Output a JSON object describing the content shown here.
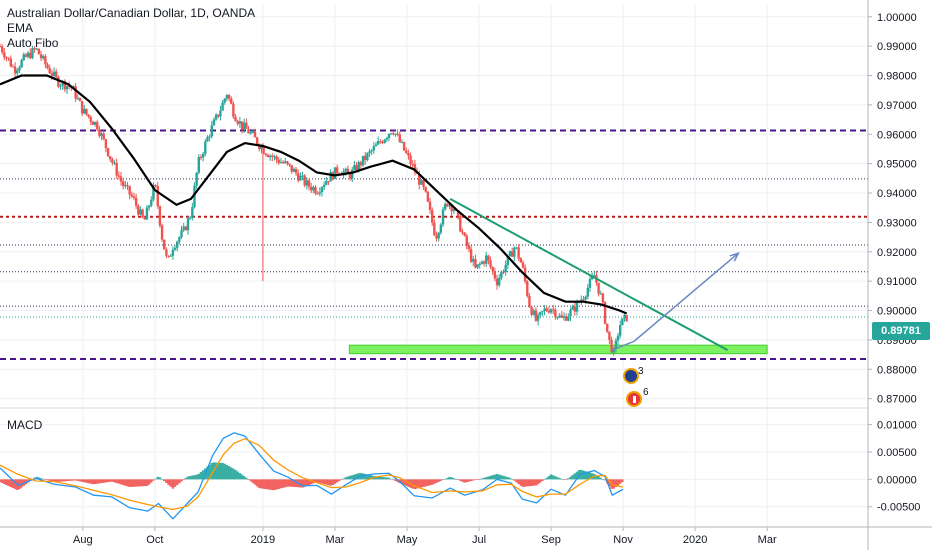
{
  "legend": {
    "title": "Australian Dollar/Canadian Dollar, 1D, OANDA",
    "indicator_1": "EMA",
    "indicator_2": "Auto Fibo"
  },
  "macd_label": "MACD",
  "last_price_tag": "0.89781",
  "events": [
    {
      "icon": "aud-flag-icon",
      "count": "3"
    },
    {
      "icon": "cad-flag-icon",
      "count": "6"
    }
  ],
  "colors": {
    "up": "#26a69a",
    "down": "#ef5350",
    "ema": "#000000",
    "fibo_major": "#4a148c",
    "fibo_red": "#b71c1c",
    "fibo_minor": "#2c2c54",
    "trendline": "#1b9e6e",
    "support_zone": "#66ee44",
    "projection": "#6b86c2",
    "macd": "#2196f3",
    "signal": "#ff9800"
  },
  "chart_data": [
    {
      "type": "candlestick",
      "title": "Australian Dollar/Canadian Dollar, 1D, OANDA",
      "price_axis": {
        "ticks": [
          "1.00000",
          "0.99000",
          "0.98000",
          "0.97000",
          "0.96000",
          "0.95000",
          "0.94000",
          "0.93000",
          "0.92000",
          "0.91000",
          "0.90000",
          "0.89000",
          "0.88000",
          "0.87000"
        ],
        "range": [
          0.8675,
          1.004
        ]
      },
      "time_axis": {
        "ticks": [
          "Aug",
          "Oct",
          "2019",
          "Mar",
          "May",
          "Jul",
          "Sep",
          "Nov",
          "2020",
          "Mar"
        ],
        "tick_months": [
          1.0,
          3.0,
          6.0,
          8.0,
          10.0,
          12.0,
          14.0,
          16.0,
          18.0,
          20.0
        ],
        "range_months": [
          -1.3,
          22.8
        ]
      },
      "price_path": [
        [
          -1.3,
          0.99
        ],
        [
          -0.9,
          0.982
        ],
        [
          -0.6,
          0.986
        ],
        [
          -0.3,
          0.989
        ],
        [
          0.0,
          0.983
        ],
        [
          0.3,
          0.978
        ],
        [
          0.7,
          0.976
        ],
        [
          1.0,
          0.968
        ],
        [
          1.4,
          0.963
        ],
        [
          1.8,
          0.951
        ],
        [
          2.1,
          0.943
        ],
        [
          2.4,
          0.938
        ],
        [
          2.7,
          0.93
        ],
        [
          3.0,
          0.943
        ],
        [
          3.2,
          0.925
        ],
        [
          3.35,
          0.916
        ],
        [
          3.5,
          0.922
        ],
        [
          3.8,
          0.927
        ],
        [
          4.0,
          0.933
        ],
        [
          4.2,
          0.95
        ],
        [
          4.5,
          0.96
        ],
        [
          4.8,
          0.968
        ],
        [
          5.0,
          0.974
        ],
        [
          5.2,
          0.967
        ],
        [
          5.4,
          0.963
        ],
        [
          5.6,
          0.961
        ],
        [
          5.8,
          0.958
        ],
        [
          6.0,
          0.955
        ],
        [
          6.3,
          0.952
        ],
        [
          6.6,
          0.95
        ],
        [
          6.9,
          0.947
        ],
        [
          7.2,
          0.943
        ],
        [
          7.5,
          0.941
        ],
        [
          7.8,
          0.945
        ],
        [
          8.1,
          0.948
        ],
        [
          8.4,
          0.946
        ],
        [
          8.7,
          0.95
        ],
        [
          9.0,
          0.954
        ],
        [
          9.3,
          0.958
        ],
        [
          9.6,
          0.962
        ],
        [
          9.9,
          0.955
        ],
        [
          10.2,
          0.948
        ],
        [
          10.5,
          0.94
        ],
        [
          10.8,
          0.925
        ],
        [
          11.1,
          0.937
        ],
        [
          11.3,
          0.935
        ],
        [
          11.6,
          0.924
        ],
        [
          11.9,
          0.914
        ],
        [
          12.2,
          0.918
        ],
        [
          12.5,
          0.91
        ],
        [
          12.8,
          0.917
        ],
        [
          13.0,
          0.922
        ],
        [
          13.2,
          0.915
        ],
        [
          13.4,
          0.902
        ],
        [
          13.6,
          0.896
        ],
        [
          13.8,
          0.9
        ],
        [
          14.0,
          0.901
        ],
        [
          14.3,
          0.897
        ],
        [
          14.6,
          0.9
        ],
        [
          14.9,
          0.905
        ],
        [
          15.2,
          0.912
        ],
        [
          15.4,
          0.904
        ],
        [
          15.6,
          0.89
        ],
        [
          15.75,
          0.885
        ],
        [
          15.9,
          0.895
        ],
        [
          16.1,
          0.8978
        ]
      ],
      "ema_path": [
        [
          -1.3,
          0.977
        ],
        [
          -0.7,
          0.98
        ],
        [
          0.0,
          0.98
        ],
        [
          0.6,
          0.977
        ],
        [
          1.2,
          0.971
        ],
        [
          1.8,
          0.962
        ],
        [
          2.4,
          0.952
        ],
        [
          3.0,
          0.941
        ],
        [
          3.6,
          0.936
        ],
        [
          4.0,
          0.938
        ],
        [
          4.5,
          0.946
        ],
        [
          5.0,
          0.954
        ],
        [
          5.5,
          0.957
        ],
        [
          6.0,
          0.956
        ],
        [
          6.5,
          0.954
        ],
        [
          7.0,
          0.951
        ],
        [
          7.5,
          0.947
        ],
        [
          8.0,
          0.946
        ],
        [
          8.5,
          0.947
        ],
        [
          9.0,
          0.949
        ],
        [
          9.6,
          0.951
        ],
        [
          10.2,
          0.948
        ],
        [
          10.8,
          0.941
        ],
        [
          11.4,
          0.934
        ],
        [
          12.0,
          0.928
        ],
        [
          12.6,
          0.921
        ],
        [
          13.2,
          0.913
        ],
        [
          13.8,
          0.906
        ],
        [
          14.4,
          0.903
        ],
        [
          14.9,
          0.903
        ],
        [
          15.4,
          0.902
        ],
        [
          15.9,
          0.9
        ],
        [
          16.1,
          0.899
        ]
      ],
      "fibo_levels": [
        {
          "price": 0.9613,
          "style": "major"
        },
        {
          "price": 0.9448,
          "style": "minor"
        },
        {
          "price": 0.9319,
          "style": "red"
        },
        {
          "price": 0.9223,
          "style": "minor"
        },
        {
          "price": 0.9132,
          "style": "minor"
        },
        {
          "price": 0.9015,
          "style": "minor"
        },
        {
          "price": 0.8978,
          "style": "minor"
        },
        {
          "price": 0.8835,
          "style": "major"
        }
      ],
      "trendline": [
        [
          11.2,
          0.938
        ],
        [
          18.9,
          0.8865
        ]
      ],
      "support_zone": {
        "x": [
          8.4,
          20.0
        ],
        "price": [
          0.8853,
          0.8882
        ]
      },
      "projection": [
        [
          15.7,
          0.8866
        ],
        [
          16.3,
          0.8895
        ],
        [
          19.2,
          0.9195
        ]
      ],
      "last_price": 0.8978
    },
    {
      "type": "line",
      "title": "MACD",
      "value_axis": {
        "ticks": [
          "0.01000",
          "0.00500",
          "0.00000",
          "-0.00500"
        ],
        "range": [
          -0.0087,
          0.0123
        ]
      },
      "series": [
        {
          "role": "macd",
          "points": [
            [
              -1.3,
              0.0021
            ],
            [
              -0.8,
              -0.0011
            ],
            [
              -0.3,
              0.0002
            ],
            [
              0.2,
              -0.0009
            ],
            [
              0.8,
              -0.0014
            ],
            [
              1.3,
              -0.0029
            ],
            [
              1.8,
              -0.0032
            ],
            [
              2.3,
              -0.0052
            ],
            [
              2.8,
              -0.0058
            ],
            [
              3.1,
              -0.0044
            ],
            [
              3.5,
              -0.0072
            ],
            [
              3.9,
              -0.0044
            ],
            [
              4.2,
              -0.0023
            ],
            [
              4.6,
              0.0043
            ],
            [
              4.9,
              0.0075
            ],
            [
              5.2,
              0.0085
            ],
            [
              5.5,
              0.0079
            ],
            [
              5.9,
              0.0046
            ],
            [
              6.3,
              0.0015
            ],
            [
              6.7,
              0.0004
            ],
            [
              7.1,
              -0.0012
            ],
            [
              7.5,
              -0.0011
            ],
            [
              7.9,
              -0.0027
            ],
            [
              8.3,
              -0.001
            ],
            [
              8.7,
              0.0006
            ],
            [
              9.1,
              0.001
            ],
            [
              9.5,
              0.0011
            ],
            [
              9.8,
              -0.0004
            ],
            [
              10.2,
              -0.003
            ],
            [
              10.7,
              -0.0034
            ],
            [
              11.2,
              -0.0016
            ],
            [
              11.6,
              -0.0029
            ],
            [
              12.1,
              -0.0019
            ],
            [
              12.5,
              0.0
            ],
            [
              12.9,
              -0.0007
            ],
            [
              13.2,
              -0.0036
            ],
            [
              13.6,
              -0.0043
            ],
            [
              14.0,
              -0.0018
            ],
            [
              14.4,
              -0.0029
            ],
            [
              14.8,
              0.0009
            ],
            [
              15.2,
              0.0016
            ],
            [
              15.5,
              0.0005
            ],
            [
              15.7,
              -0.0029
            ],
            [
              16.0,
              -0.0018
            ]
          ]
        },
        {
          "role": "signal",
          "points": [
            [
              -1.3,
              0.0026
            ],
            [
              -0.8,
              0.0009
            ],
            [
              -0.3,
              -0.0003
            ],
            [
              0.2,
              -0.0004
            ],
            [
              0.8,
              -0.0012
            ],
            [
              1.3,
              -0.002
            ],
            [
              1.8,
              -0.0028
            ],
            [
              2.3,
              -0.0038
            ],
            [
              2.8,
              -0.0046
            ],
            [
              3.1,
              -0.005
            ],
            [
              3.5,
              -0.0055
            ],
            [
              3.9,
              -0.0049
            ],
            [
              4.2,
              -0.0032
            ],
            [
              4.6,
              0.0012
            ],
            [
              4.9,
              0.0045
            ],
            [
              5.2,
              0.0066
            ],
            [
              5.5,
              0.0074
            ],
            [
              5.9,
              0.0062
            ],
            [
              6.3,
              0.0035
            ],
            [
              6.7,
              0.0017
            ],
            [
              7.1,
              0.0003
            ],
            [
              7.5,
              -0.0006
            ],
            [
              7.9,
              -0.0015
            ],
            [
              8.3,
              -0.0014
            ],
            [
              8.7,
              -0.0006
            ],
            [
              9.1,
              0.0004
            ],
            [
              9.5,
              0.0008
            ],
            [
              9.8,
              0.0003
            ],
            [
              10.2,
              -0.0012
            ],
            [
              10.7,
              -0.0024
            ],
            [
              11.2,
              -0.0021
            ],
            [
              11.6,
              -0.0023
            ],
            [
              12.1,
              -0.0021
            ],
            [
              12.5,
              -0.001
            ],
            [
              12.9,
              -0.0009
            ],
            [
              13.2,
              -0.0022
            ],
            [
              13.6,
              -0.0032
            ],
            [
              14.0,
              -0.0027
            ],
            [
              14.4,
              -0.0027
            ],
            [
              14.8,
              -0.0009
            ],
            [
              15.2,
              0.0006
            ],
            [
              15.5,
              0.0007
            ],
            [
              15.7,
              -0.001
            ],
            [
              16.0,
              -0.0014
            ]
          ]
        }
      ]
    }
  ]
}
